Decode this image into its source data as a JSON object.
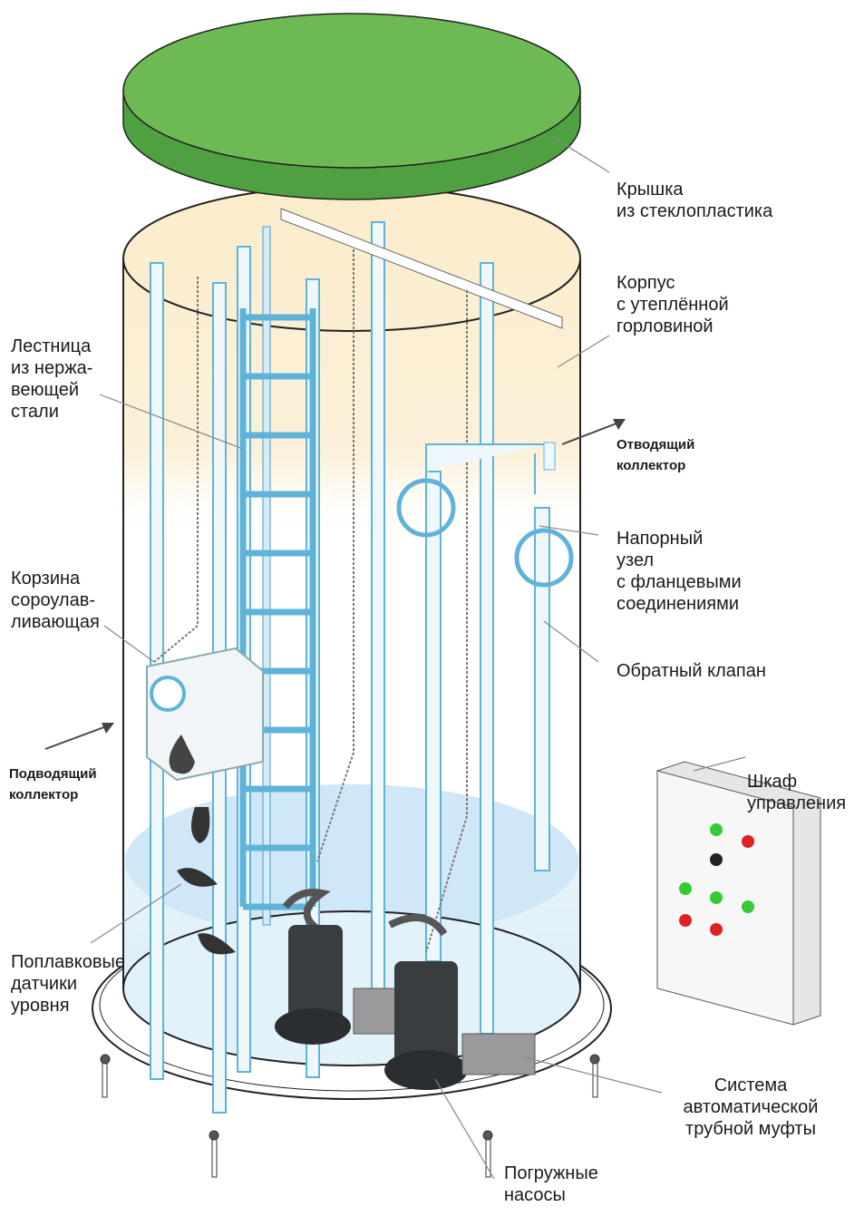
{
  "labels": [
    {
      "lines": [
        "Крышка",
        "из стеклопластика"
      ]
    },
    {
      "lines": [
        "Корпус",
        "с утеплённой",
        "горловиной"
      ]
    },
    {
      "lines": [
        "Лестница",
        "из нержа-",
        "веющей",
        "стали"
      ]
    },
    {
      "lines": [
        "Отводящий",
        "коллектор"
      ]
    },
    {
      "lines": [
        "Напорный",
        "узел",
        "с фланцевыми",
        "соединениями"
      ]
    },
    {
      "lines": [
        "Корзина",
        "сороулав-",
        "ливающая"
      ]
    },
    {
      "lines": [
        "Обратный клапан"
      ]
    },
    {
      "lines": [
        "Шкаф",
        "управления"
      ]
    },
    {
      "lines": [
        "Подводящий",
        "коллектор"
      ]
    },
    {
      "lines": [
        "Поплавковые",
        "датчики",
        "уровня"
      ]
    },
    {
      "lines": [
        "Система",
        "автоматической",
        "трубной муфты"
      ]
    },
    {
      "lines": [
        "Погружные",
        "насосы"
      ]
    }
  ]
}
